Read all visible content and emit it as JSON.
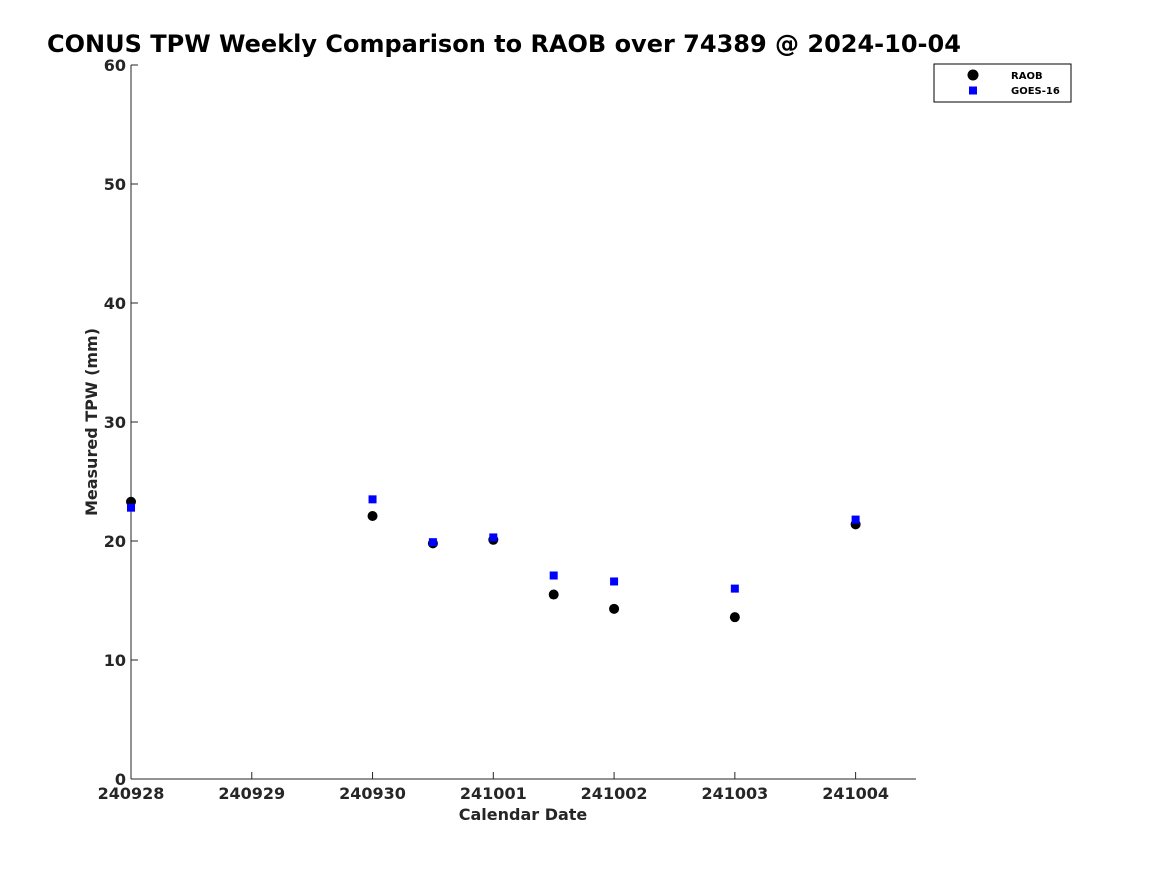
{
  "chart_data": {
    "type": "scatter",
    "title": "CONUS TPW Weekly Comparison to RAOB over 74389 @ 2024-10-04",
    "xlabel": "Calendar Date",
    "ylabel": "Measured TPW (mm)",
    "x_ticks": [
      "240928",
      "240929",
      "240930",
      "241001",
      "241002",
      "241003",
      "241004"
    ],
    "xlim": [
      0,
      6.5
    ],
    "ylim": [
      0,
      60
    ],
    "y_ticks": [
      0,
      10,
      20,
      30,
      40,
      50,
      60
    ],
    "grid": false,
    "legend_position": "top-right",
    "series": [
      {
        "name": "RAOB",
        "marker": "circle",
        "color": "#000000",
        "points": [
          {
            "x": 0.0,
            "y": 23.3
          },
          {
            "x": 2.0,
            "y": 22.1
          },
          {
            "x": 2.5,
            "y": 19.8
          },
          {
            "x": 3.0,
            "y": 20.1
          },
          {
            "x": 3.5,
            "y": 15.5
          },
          {
            "x": 4.0,
            "y": 14.3
          },
          {
            "x": 5.0,
            "y": 13.6
          },
          {
            "x": 6.0,
            "y": 21.4
          }
        ]
      },
      {
        "name": "GOES-16",
        "marker": "square",
        "color": "#0000ff",
        "points": [
          {
            "x": 0.0,
            "y": 22.8
          },
          {
            "x": 2.0,
            "y": 23.5
          },
          {
            "x": 2.5,
            "y": 19.9
          },
          {
            "x": 3.0,
            "y": 20.3
          },
          {
            "x": 3.5,
            "y": 17.1
          },
          {
            "x": 4.0,
            "y": 16.6
          },
          {
            "x": 5.0,
            "y": 16.0
          },
          {
            "x": 6.0,
            "y": 21.8
          }
        ]
      }
    ]
  }
}
